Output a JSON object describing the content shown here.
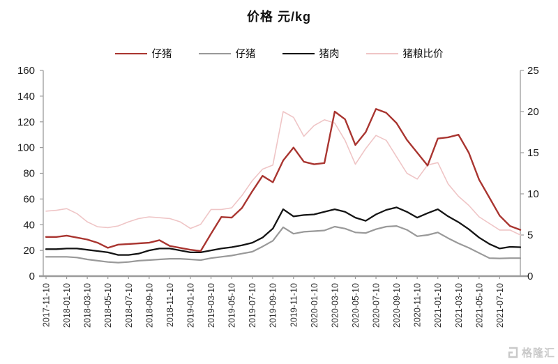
{
  "title": "价格 元/kg",
  "watermark": {
    "brand": "格隆汇"
  },
  "colors": {
    "red": "#A93530",
    "gray": "#999999",
    "black": "#141414",
    "pink": "#EFC5C6",
    "axis": "#9B9B9B",
    "x_label": "#2F2F2F",
    "y_label": "#1C1C1C",
    "watermark": "#C9C9C9"
  },
  "legend": [
    {
      "label": "仔猪",
      "color_key": "red"
    },
    {
      "label": "仔猪",
      "color_key": "gray"
    },
    {
      "label": "猪肉",
      "color_key": "black"
    },
    {
      "label": "猪粮比价",
      "color_key": "pink"
    }
  ],
  "chart_data": {
    "type": "line",
    "title": "价格 元/kg",
    "grid": false,
    "legend_position": "top",
    "x_unit": "month",
    "x": [
      "2017-11",
      "2017-12",
      "2018-01",
      "2018-02",
      "2018-03",
      "2018-04",
      "2018-05",
      "2018-06",
      "2018-07",
      "2018-08",
      "2018-09",
      "2018-10",
      "2018-11",
      "2018-12",
      "2019-01",
      "2019-02",
      "2019-03",
      "2019-04",
      "2019-05",
      "2019-06",
      "2019-07",
      "2019-08",
      "2019-09",
      "2019-10",
      "2019-11",
      "2019-12",
      "2020-01",
      "2020-02",
      "2020-03",
      "2020-04",
      "2020-05",
      "2020-06",
      "2020-07",
      "2020-08",
      "2020-09",
      "2020-10",
      "2020-11",
      "2020-12",
      "2021-01",
      "2021-02",
      "2021-03",
      "2021-04",
      "2021-05",
      "2021-06",
      "2021-07",
      "2021-08",
      "2021-09"
    ],
    "x_tick_labels": [
      "2017-11-10",
      "2018-01-10",
      "2018-03-10",
      "2018-05-10",
      "2018-07-10",
      "2018-09-10",
      "2018-11-10",
      "2019-01-10",
      "2019-03-10",
      "2019-05-10",
      "2019-07-10",
      "2019-09-10",
      "2019-11-10",
      "2020-01-10",
      "2020-03-10",
      "2020-05-10",
      "2020-07-10",
      "2020-09-10",
      "2020-11-10",
      "2021-01-10",
      "2021-03-10",
      "2021-05-10",
      "2021-07-10"
    ],
    "left_axis": {
      "min": 0,
      "max": 160,
      "ticks": [
        0,
        20,
        40,
        60,
        80,
        100,
        120,
        140,
        160
      ]
    },
    "right_axis": {
      "min": 0,
      "max": 25,
      "ticks": [
        0,
        5,
        10,
        15,
        20,
        25
      ]
    },
    "series": [
      {
        "name": "仔猪",
        "axis": "left",
        "color_key": "red",
        "line_width": 2.4,
        "values": [
          30.5,
          30.5,
          31.5,
          30,
          28.5,
          26,
          22,
          24.5,
          25,
          25.5,
          26,
          28,
          23.5,
          22,
          20.5,
          19.5,
          33,
          46,
          45.5,
          53,
          66,
          78,
          73,
          90,
          100,
          89,
          87,
          88,
          128,
          122,
          102,
          112,
          130,
          127,
          119,
          106,
          96,
          86,
          107,
          108,
          110,
          96,
          75,
          61,
          47,
          39,
          36
        ]
      },
      {
        "name": "仔猪",
        "axis": "left",
        "color_key": "gray",
        "line_width": 2.2,
        "values": [
          15,
          15,
          15,
          14.5,
          13,
          12,
          11,
          10.5,
          11,
          12,
          12.5,
          13,
          13.5,
          13.5,
          13,
          12.5,
          14,
          15,
          16,
          17.5,
          19,
          23,
          27.5,
          38,
          33,
          34.5,
          35,
          35.5,
          38.5,
          37,
          34,
          33.5,
          36.5,
          38.5,
          39,
          36,
          31,
          32,
          34,
          29.5,
          25.5,
          22,
          18,
          14,
          13.8,
          14,
          14
        ]
      },
      {
        "name": "猪肉",
        "axis": "left",
        "color_key": "black",
        "line_width": 2.3,
        "values": [
          21,
          21,
          21.5,
          21.5,
          20.5,
          19.5,
          18.5,
          16.5,
          16.5,
          17.5,
          20,
          21.5,
          21.5,
          20,
          18.5,
          18.5,
          20,
          21.5,
          22.5,
          24,
          26,
          30,
          37,
          52,
          46.5,
          47.5,
          48,
          50,
          52,
          50,
          45.5,
          43,
          48,
          51.5,
          53.5,
          50,
          45.5,
          49,
          52,
          46.5,
          42,
          36.5,
          30,
          25,
          21.5,
          22.8,
          22.5
        ]
      },
      {
        "name": "猪粮比价",
        "axis": "right",
        "color_key": "pink",
        "line_width": 1.6,
        "values": [
          7.9,
          8.0,
          8.2,
          7.6,
          6.6,
          6.0,
          5.9,
          6.1,
          6.6,
          7.0,
          7.2,
          7.1,
          7.0,
          6.6,
          5.8,
          6.3,
          8.1,
          8.1,
          8.3,
          9.8,
          11.6,
          13.0,
          13.5,
          20.0,
          19.3,
          17.0,
          18.3,
          19.0,
          18.6,
          16.5,
          13.6,
          15.5,
          17.1,
          16.5,
          14.5,
          12.5,
          11.8,
          13.5,
          13.8,
          11.2,
          9.7,
          8.6,
          7.2,
          6.4,
          5.6,
          5.6,
          5.0
        ]
      }
    ]
  }
}
